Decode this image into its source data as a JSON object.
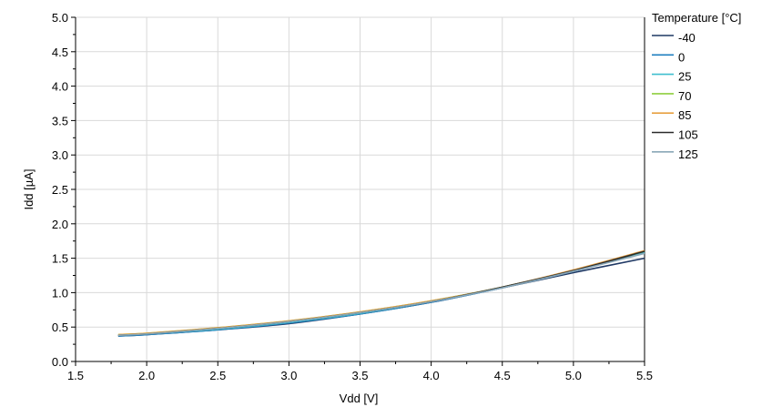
{
  "chart_data": {
    "type": "line",
    "xlabel": "Vdd [V]",
    "ylabel": "Idd [µA]",
    "xlim": [
      1.5,
      5.5
    ],
    "ylim": [
      0.0,
      5.0
    ],
    "x_ticks": [
      "1.5",
      "2.0",
      "2.5",
      "3.0",
      "3.5",
      "4.0",
      "4.5",
      "5.0",
      "5.5"
    ],
    "y_ticks": [
      "0.0",
      "0.5",
      "1.0",
      "1.5",
      "2.0",
      "2.5",
      "3.0",
      "3.5",
      "4.0",
      "4.5",
      "5.0"
    ],
    "grid": true,
    "legend_title": "Temperature [°C]",
    "legend_position": "right",
    "series": [
      {
        "name": "-40",
        "color": "#1f3864",
        "x": [
          1.8,
          2.0,
          2.5,
          3.0,
          3.5,
          4.0,
          4.5,
          5.0,
          5.5
        ],
        "y": [
          0.37,
          0.39,
          0.46,
          0.55,
          0.69,
          0.86,
          1.07,
          1.29,
          1.5
        ]
      },
      {
        "name": "0",
        "color": "#1f7fbf",
        "x": [
          1.8,
          2.0,
          2.5,
          3.0,
          3.5,
          4.0,
          4.5,
          5.0,
          5.5
        ],
        "y": [
          0.37,
          0.39,
          0.46,
          0.56,
          0.69,
          0.86,
          1.07,
          1.31,
          1.58
        ]
      },
      {
        "name": "25",
        "color": "#3fbfcf",
        "x": [
          1.8,
          2.0,
          2.5,
          3.0,
          3.5,
          4.0,
          4.5,
          5.0,
          5.5
        ],
        "y": [
          0.38,
          0.4,
          0.47,
          0.57,
          0.7,
          0.87,
          1.08,
          1.32,
          1.59
        ]
      },
      {
        "name": "70",
        "color": "#8fcf3f",
        "x": [
          1.8,
          2.0,
          2.5,
          3.0,
          3.5,
          4.0,
          4.5,
          5.0,
          5.5
        ],
        "y": [
          0.39,
          0.41,
          0.49,
          0.59,
          0.72,
          0.88,
          1.08,
          1.32,
          1.6
        ]
      },
      {
        "name": "85",
        "color": "#e8a040",
        "x": [
          1.8,
          2.0,
          2.5,
          3.0,
          3.5,
          4.0,
          4.5,
          5.0,
          5.5
        ],
        "y": [
          0.39,
          0.41,
          0.49,
          0.59,
          0.72,
          0.88,
          1.08,
          1.33,
          1.61
        ]
      },
      {
        "name": "105",
        "color": "#2b2b2b",
        "x": [
          1.8,
          2.0,
          2.5,
          3.0,
          3.5,
          4.0,
          4.5,
          5.0,
          5.5
        ],
        "y": [
          0.38,
          0.4,
          0.48,
          0.58,
          0.71,
          0.87,
          1.08,
          1.32,
          1.6
        ]
      },
      {
        "name": "125",
        "color": "#8aa8b8",
        "x": [
          1.8,
          2.0,
          2.5,
          3.0,
          3.5,
          4.0,
          4.5,
          5.0,
          5.5
        ],
        "y": [
          0.38,
          0.4,
          0.48,
          0.58,
          0.71,
          0.87,
          1.07,
          1.31,
          1.57
        ]
      }
    ]
  }
}
